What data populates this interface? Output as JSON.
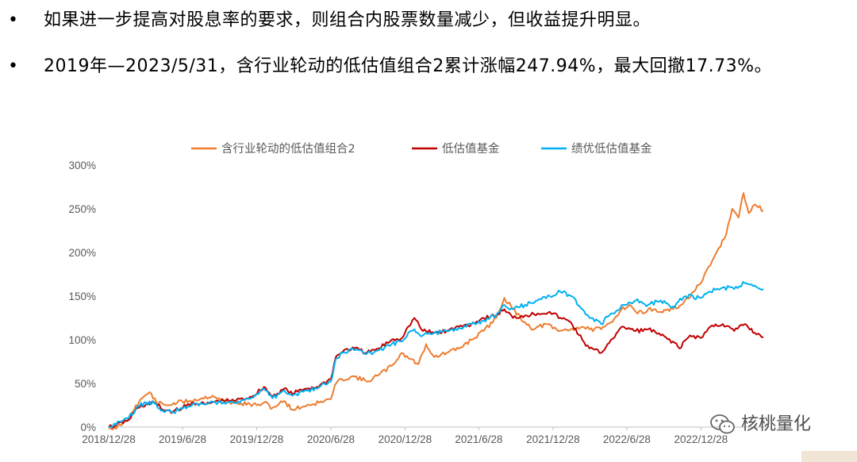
{
  "bullets": [
    {
      "marker": "•",
      "text": "如果进一步提高对股息率的要求，则组合内股票数量减少，但收益提升明显。"
    },
    {
      "marker": "•",
      "text": "2019年—2023/5/31，含行业轮动的低估值组合2累计涨幅247.94%，最大回撤17.73%。"
    }
  ],
  "watermark": {
    "text": "核桃量化",
    "icon": "wechat-icon"
  },
  "chart_data": {
    "type": "line",
    "title": "",
    "xlabel": "",
    "ylabel": "",
    "ylim": [
      0,
      300
    ],
    "y_ticks": [
      "0%",
      "50%",
      "100%",
      "150%",
      "200%",
      "250%",
      "300%"
    ],
    "x_ticks": [
      "2018/12/28",
      "2019/6/28",
      "2019/12/28",
      "2020/6/28",
      "2020/12/28",
      "2021/6/28",
      "2021/12/28",
      "2022/6/28",
      "2022/12/28"
    ],
    "x_range": [
      "2018/12/28",
      "2023/5/31"
    ],
    "legend_position": "top",
    "grid": false,
    "series": [
      {
        "name": "含行业轮动的低估值组合2",
        "color": "#ED7D31",
        "points": [
          [
            "2018/12/28",
            0
          ],
          [
            "2019/1/15",
            -2
          ],
          [
            "2019/2/15",
            10
          ],
          [
            "2019/3/5",
            25
          ],
          [
            "2019/3/25",
            35
          ],
          [
            "2019/4/8",
            40
          ],
          [
            "2019/4/25",
            28
          ],
          [
            "2019/5/20",
            25
          ],
          [
            "2019/6/15",
            28
          ],
          [
            "2019/7/15",
            30
          ],
          [
            "2019/8/15",
            33
          ],
          [
            "2019/9/10",
            36
          ],
          [
            "2019/9/30",
            31
          ],
          [
            "2019/10/30",
            28
          ],
          [
            "2019/11/20",
            27
          ],
          [
            "2019/12/28",
            25
          ],
          [
            "2020/1/15",
            28
          ],
          [
            "2020/2/5",
            22
          ],
          [
            "2020/3/5",
            30
          ],
          [
            "2020/3/25",
            20
          ],
          [
            "2020/4/30",
            25
          ],
          [
            "2020/5/30",
            28
          ],
          [
            "2020/6/28",
            32
          ],
          [
            "2020/7/8",
            48
          ],
          [
            "2020/7/25",
            55
          ],
          [
            "2020/8/25",
            58
          ],
          [
            "2020/9/25",
            52
          ],
          [
            "2020/10/25",
            60
          ],
          [
            "2020/11/25",
            70
          ],
          [
            "2020/12/20",
            85
          ],
          [
            "2021/1/10",
            78
          ],
          [
            "2021/1/30",
            72
          ],
          [
            "2021/2/18",
            95
          ],
          [
            "2021/3/10",
            80
          ],
          [
            "2021/4/10",
            85
          ],
          [
            "2021/5/10",
            90
          ],
          [
            "2021/6/10",
            100
          ],
          [
            "2021/7/10",
            110
          ],
          [
            "2021/8/10",
            125
          ],
          [
            "2021/8/30",
            148
          ],
          [
            "2021/9/20",
            135
          ],
          [
            "2021/10/20",
            120
          ],
          [
            "2021/11/10",
            112
          ],
          [
            "2021/12/10",
            118
          ],
          [
            "2022/1/10",
            110
          ],
          [
            "2022/2/10",
            112
          ],
          [
            "2022/3/10",
            115
          ],
          [
            "2022/3/28",
            112
          ],
          [
            "2022/4/26",
            112
          ],
          [
            "2022/5/20",
            120
          ],
          [
            "2022/6/15",
            135
          ],
          [
            "2022/7/5",
            140
          ],
          [
            "2022/7/25",
            130
          ],
          [
            "2022/8/20",
            135
          ],
          [
            "2022/9/20",
            132
          ],
          [
            "2022/10/20",
            135
          ],
          [
            "2022/11/10",
            140
          ],
          [
            "2022/12/10",
            155
          ],
          [
            "2022/12/28",
            165
          ],
          [
            "2023/1/20",
            185
          ],
          [
            "2023/2/10",
            205
          ],
          [
            "2023/2/28",
            220
          ],
          [
            "2023/3/15",
            250
          ],
          [
            "2023/3/31",
            240
          ],
          [
            "2023/4/12",
            268
          ],
          [
            "2023/4/25",
            245
          ],
          [
            "2023/5/10",
            255
          ],
          [
            "2023/5/31",
            248
          ]
        ]
      },
      {
        "name": "低估值基金",
        "color": "#C00000",
        "points": [
          [
            "2018/12/28",
            0
          ],
          [
            "2019/1/15",
            2
          ],
          [
            "2019/2/15",
            8
          ],
          [
            "2019/3/10",
            22
          ],
          [
            "2019/3/30",
            26
          ],
          [
            "2019/4/20",
            28
          ],
          [
            "2019/5/10",
            20
          ],
          [
            "2019/6/5",
            18
          ],
          [
            "2019/6/28",
            22
          ],
          [
            "2019/7/25",
            28
          ],
          [
            "2019/8/25",
            26
          ],
          [
            "2019/9/25",
            30
          ],
          [
            "2019/10/25",
            30
          ],
          [
            "2019/11/25",
            32
          ],
          [
            "2019/12/20",
            36
          ],
          [
            "2020/1/15",
            46
          ],
          [
            "2020/2/5",
            35
          ],
          [
            "2020/3/5",
            44
          ],
          [
            "2020/3/25",
            38
          ],
          [
            "2020/4/25",
            44
          ],
          [
            "2020/5/25",
            46
          ],
          [
            "2020/6/28",
            55
          ],
          [
            "2020/7/10",
            80
          ],
          [
            "2020/7/30",
            88
          ],
          [
            "2020/8/25",
            90
          ],
          [
            "2020/9/25",
            85
          ],
          [
            "2020/10/25",
            90
          ],
          [
            "2020/11/25",
            100
          ],
          [
            "2020/12/20",
            102
          ],
          [
            "2021/1/5",
            115
          ],
          [
            "2021/1/20",
            125
          ],
          [
            "2021/2/10",
            110
          ],
          [
            "2021/3/10",
            108
          ],
          [
            "2021/4/10",
            110
          ],
          [
            "2021/5/10",
            115
          ],
          [
            "2021/6/10",
            118
          ],
          [
            "2021/7/10",
            125
          ],
          [
            "2021/8/10",
            128
          ],
          [
            "2021/8/30",
            135
          ],
          [
            "2021/9/20",
            125
          ],
          [
            "2021/10/20",
            128
          ],
          [
            "2021/11/20",
            130
          ],
          [
            "2021/12/20",
            132
          ],
          [
            "2022/1/15",
            125
          ],
          [
            "2022/2/10",
            120
          ],
          [
            "2022/3/10",
            100
          ],
          [
            "2022/3/28",
            90
          ],
          [
            "2022/4/26",
            85
          ],
          [
            "2022/5/20",
            100
          ],
          [
            "2022/6/20",
            115
          ],
          [
            "2022/7/20",
            110
          ],
          [
            "2022/8/20",
            112
          ],
          [
            "2022/9/20",
            105
          ],
          [
            "2022/10/20",
            98
          ],
          [
            "2022/11/5",
            90
          ],
          [
            "2022/12/1",
            105
          ],
          [
            "2022/12/28",
            102
          ],
          [
            "2023/1/20",
            115
          ],
          [
            "2023/2/20",
            118
          ],
          [
            "2023/3/20",
            110
          ],
          [
            "2023/4/15",
            118
          ],
          [
            "2023/5/10",
            108
          ],
          [
            "2023/5/31",
            103
          ]
        ]
      },
      {
        "name": "绩优低估值基金",
        "color": "#00B0F0",
        "points": [
          [
            "2018/12/28",
            0
          ],
          [
            "2019/1/15",
            3
          ],
          [
            "2019/2/15",
            10
          ],
          [
            "2019/3/10",
            24
          ],
          [
            "2019/3/30",
            28
          ],
          [
            "2019/4/20",
            27
          ],
          [
            "2019/5/10",
            19
          ],
          [
            "2019/6/5",
            17
          ],
          [
            "2019/6/28",
            21
          ],
          [
            "2019/7/25",
            27
          ],
          [
            "2019/8/25",
            26
          ],
          [
            "2019/9/25",
            29
          ],
          [
            "2019/10/25",
            29
          ],
          [
            "2019/11/25",
            31
          ],
          [
            "2019/12/20",
            34
          ],
          [
            "2020/1/15",
            44
          ],
          [
            "2020/2/5",
            33
          ],
          [
            "2020/3/5",
            42
          ],
          [
            "2020/3/25",
            36
          ],
          [
            "2020/4/25",
            42
          ],
          [
            "2020/5/25",
            44
          ],
          [
            "2020/6/28",
            52
          ],
          [
            "2020/7/10",
            78
          ],
          [
            "2020/7/30",
            86
          ],
          [
            "2020/8/25",
            88
          ],
          [
            "2020/9/25",
            84
          ],
          [
            "2020/10/25",
            88
          ],
          [
            "2020/11/25",
            95
          ],
          [
            "2020/12/20",
            98
          ],
          [
            "2021/1/5",
            108
          ],
          [
            "2021/1/20",
            112
          ],
          [
            "2021/2/10",
            105
          ],
          [
            "2021/3/10",
            108
          ],
          [
            "2021/4/10",
            110
          ],
          [
            "2021/5/10",
            114
          ],
          [
            "2021/6/10",
            118
          ],
          [
            "2021/7/10",
            122
          ],
          [
            "2021/8/10",
            128
          ],
          [
            "2021/8/30",
            140
          ],
          [
            "2021/9/20",
            135
          ],
          [
            "2021/10/20",
            140
          ],
          [
            "2021/11/20",
            145
          ],
          [
            "2021/12/20",
            150
          ],
          [
            "2022/1/15",
            155
          ],
          [
            "2022/2/10",
            150
          ],
          [
            "2022/3/10",
            135
          ],
          [
            "2022/3/28",
            125
          ],
          [
            "2022/4/26",
            118
          ],
          [
            "2022/5/20",
            130
          ],
          [
            "2022/6/20",
            140
          ],
          [
            "2022/7/20",
            145
          ],
          [
            "2022/8/20",
            140
          ],
          [
            "2022/9/20",
            145
          ],
          [
            "2022/10/20",
            138
          ],
          [
            "2022/11/20",
            150
          ],
          [
            "2022/12/28",
            148
          ],
          [
            "2023/1/20",
            155
          ],
          [
            "2023/2/20",
            160
          ],
          [
            "2023/3/20",
            158
          ],
          [
            "2023/4/15",
            165
          ],
          [
            "2023/5/10",
            162
          ],
          [
            "2023/5/31",
            158
          ]
        ]
      }
    ]
  }
}
